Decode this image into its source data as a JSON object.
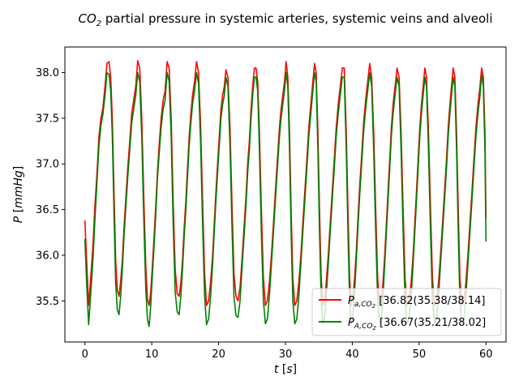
{
  "chart_data": {
    "type": "line",
    "title_parts": [
      "CO",
      "2",
      " partial pressure in systemic arteries, systemic veins and alveoli"
    ],
    "xlabel_parts": [
      "t",
      " [",
      "s",
      "]"
    ],
    "ylabel_parts": [
      "P",
      " [",
      "mmHg",
      "]"
    ],
    "xlim": [
      -3,
      63
    ],
    "ylim": [
      35.05,
      38.28
    ],
    "xticks": [
      0,
      10,
      20,
      30,
      40,
      50,
      60
    ],
    "xtick_labels": [
      "0",
      "10",
      "20",
      "30",
      "40",
      "50",
      "60"
    ],
    "yticks": [
      35.5,
      36.0,
      36.5,
      37.0,
      37.5,
      38.0
    ],
    "ytick_labels": [
      "35.5",
      "36.0",
      "36.5",
      "37.0",
      "37.5",
      "38.0"
    ],
    "grid": false,
    "legend_position": "lower-right",
    "series": [
      {
        "name_parts": [
          "P",
          "a,CO",
          "2",
          " [36.82(35.38/38.14]"
        ],
        "color": "#ff0000",
        "x": [
          0,
          0.25,
          0.55,
          0.9,
          1.2,
          1.5,
          1.8,
          2.1,
          2.4,
          2.7,
          3.0,
          3.3,
          3.6,
          3.85,
          4.1,
          4.35,
          4.6,
          4.85,
          5.1,
          5.35,
          5.6,
          5.85,
          6.1,
          6.4,
          6.7,
          7.0,
          7.3,
          7.6,
          7.9,
          8.2,
          8.5,
          8.8,
          9.1,
          9.35,
          9.6,
          9.85,
          10.1,
          10.35,
          10.6,
          10.85,
          11.1,
          11.4,
          11.7,
          12.0,
          12.3,
          12.6,
          12.9,
          13.2,
          13.5,
          13.8,
          14.1,
          14.35,
          14.6,
          14.85,
          15.1,
          15.35,
          15.6,
          15.85,
          16.1,
          16.4,
          16.7,
          17.0,
          17.3,
          17.6,
          17.9,
          18.2,
          18.5,
          18.8,
          19.1,
          19.35,
          19.6,
          19.85,
          20.1,
          20.35,
          20.6,
          20.85,
          21.1,
          21.4,
          21.7,
          22.0,
          22.3,
          22.6,
          22.9,
          23.2,
          23.5,
          23.8,
          24.1,
          24.35,
          24.6,
          24.85,
          25.1,
          25.35,
          25.6,
          25.85,
          26.1,
          26.4,
          26.7,
          27.0,
          27.3,
          27.6,
          27.9,
          28.2,
          28.5,
          28.8,
          29.1,
          29.35,
          29.6,
          29.85,
          30.1,
          30.35,
          30.6,
          30.85,
          31.1,
          31.4,
          31.7,
          32.0,
          32.3,
          32.6,
          32.9,
          33.2,
          33.5,
          33.8,
          34.1,
          34.35,
          34.6,
          34.85,
          35.1,
          35.35,
          35.6,
          35.85,
          36.1,
          36.4,
          36.7,
          37.0,
          37.3,
          37.6,
          37.9,
          38.2,
          38.5,
          38.8,
          39.1,
          39.35,
          39.6,
          39.85,
          40.1,
          40.35,
          40.6,
          40.85,
          41.1,
          41.4,
          41.7,
          42.0,
          42.3,
          42.6,
          42.9,
          43.2,
          43.5,
          43.8,
          44.1,
          44.35,
          44.6,
          44.85,
          45.1,
          45.35,
          45.6,
          45.85,
          46.1,
          46.4,
          46.7,
          47.0,
          47.3,
          47.6,
          47.9,
          48.2,
          48.5,
          48.8,
          49.1,
          49.35,
          49.6,
          49.85,
          50.1,
          50.35,
          50.6,
          50.85,
          51.1,
          51.4,
          51.7,
          52.0,
          52.3,
          52.6,
          52.9,
          53.2,
          53.5,
          53.8,
          54.1,
          54.35,
          54.6,
          54.85,
          55.1,
          55.35,
          55.6,
          55.85,
          56.1,
          56.4,
          56.7,
          57.0,
          57.3,
          57.6,
          57.9,
          58.2,
          58.5,
          58.8,
          59.1,
          59.35,
          59.6,
          59.85,
          60.0
        ],
        "y": [
          36.38,
          35.95,
          35.45,
          35.78,
          36.1,
          36.55,
          36.9,
          37.3,
          37.5,
          37.62,
          37.85,
          38.1,
          38.12,
          37.95,
          37.5,
          36.7,
          35.95,
          35.62,
          35.55,
          35.72,
          35.95,
          36.3,
          36.6,
          36.95,
          37.25,
          37.55,
          37.7,
          37.85,
          38.13,
          38.05,
          37.5,
          36.65,
          35.9,
          35.52,
          35.45,
          35.6,
          35.9,
          36.2,
          36.55,
          36.92,
          37.2,
          37.5,
          37.7,
          37.8,
          38.12,
          38.05,
          37.5,
          36.6,
          35.85,
          35.58,
          35.55,
          35.7,
          35.95,
          36.3,
          36.6,
          36.95,
          37.3,
          37.55,
          37.75,
          37.9,
          38.12,
          38.0,
          37.45,
          36.6,
          35.8,
          35.45,
          35.5,
          35.7,
          36.0,
          36.35,
          36.7,
          37.0,
          37.3,
          37.6,
          37.75,
          37.85,
          38.03,
          37.95,
          37.4,
          36.55,
          35.8,
          35.55,
          35.5,
          35.65,
          35.95,
          36.3,
          36.65,
          37.0,
          37.25,
          37.6,
          37.85,
          38.05,
          38.05,
          37.9,
          37.35,
          36.5,
          35.75,
          35.45,
          35.5,
          35.7,
          36.0,
          36.35,
          36.7,
          37.05,
          37.4,
          37.6,
          37.75,
          37.9,
          38.12,
          37.95,
          37.4,
          36.5,
          35.75,
          35.45,
          35.5,
          35.7,
          36.0,
          36.35,
          36.7,
          37.05,
          37.4,
          37.65,
          37.9,
          38.1,
          38.0,
          37.35,
          36.5,
          35.75,
          35.45,
          35.5,
          35.7,
          36.0,
          36.35,
          36.7,
          37.05,
          37.4,
          37.65,
          37.85,
          38.05,
          38.05,
          37.35,
          36.5,
          35.75,
          35.45,
          35.55,
          35.75,
          36.05,
          36.4,
          36.75,
          37.1,
          37.45,
          37.7,
          37.9,
          38.1,
          37.95,
          37.35,
          36.5,
          35.75,
          35.45,
          35.5,
          35.7,
          36.0,
          36.35,
          36.7,
          37.05,
          37.4,
          37.65,
          37.85,
          38.05,
          37.95,
          37.35,
          36.5,
          35.75,
          35.45,
          35.5,
          35.7,
          36.0,
          36.35,
          36.7,
          37.05,
          37.4,
          37.65,
          37.85,
          38.05,
          37.95,
          37.35,
          36.5,
          35.75,
          35.45,
          35.5,
          35.7,
          36.0,
          36.35,
          36.7,
          37.05,
          37.4,
          37.65,
          37.85,
          38.05,
          37.95,
          37.35,
          36.5,
          35.75,
          35.45,
          35.5,
          35.7,
          36.0,
          36.35,
          36.7,
          37.05,
          37.4,
          37.65,
          37.85,
          38.05,
          37.95,
          37.35,
          36.4
        ]
      },
      {
        "name_parts": [
          "P",
          "A,CO",
          "2",
          " [36.67(35.21/38.02]"
        ],
        "color": "#008000",
        "x": [
          0,
          0.25,
          0.55,
          0.9,
          1.2,
          1.5,
          1.8,
          2.1,
          2.4,
          2.7,
          3.0,
          3.3,
          3.6,
          3.85,
          4.1,
          4.35,
          4.6,
          4.85,
          5.1,
          5.35,
          5.6,
          5.85,
          6.1,
          6.4,
          6.7,
          7.0,
          7.3,
          7.6,
          7.9,
          8.2,
          8.5,
          8.8,
          9.1,
          9.35,
          9.6,
          9.85,
          10.1,
          10.35,
          10.6,
          10.85,
          11.1,
          11.4,
          11.7,
          12.0,
          12.3,
          12.6,
          12.9,
          13.2,
          13.5,
          13.8,
          14.1,
          14.35,
          14.6,
          14.85,
          15.1,
          15.35,
          15.6,
          15.85,
          16.1,
          16.4,
          16.7,
          17.0,
          17.3,
          17.6,
          17.9,
          18.2,
          18.5,
          18.8,
          19.1,
          19.35,
          19.6,
          19.85,
          20.1,
          20.35,
          20.6,
          20.85,
          21.1,
          21.4,
          21.7,
          22.0,
          22.3,
          22.6,
          22.9,
          23.2,
          23.5,
          23.8,
          24.1,
          24.35,
          24.6,
          24.85,
          25.1,
          25.35,
          25.6,
          25.85,
          26.1,
          26.4,
          26.7,
          27.0,
          27.3,
          27.6,
          27.9,
          28.2,
          28.5,
          28.8,
          29.1,
          29.35,
          29.6,
          29.85,
          30.1,
          30.35,
          30.6,
          30.85,
          31.1,
          31.4,
          31.7,
          32.0,
          32.3,
          32.6,
          32.9,
          33.2,
          33.5,
          33.8,
          34.1,
          34.35,
          34.6,
          34.85,
          35.1,
          35.35,
          35.6,
          35.85,
          36.1,
          36.4,
          36.7,
          37.0,
          37.3,
          37.6,
          37.9,
          38.2,
          38.5,
          38.8,
          39.1,
          39.35,
          39.6,
          39.85,
          40.1,
          40.35,
          40.6,
          40.85,
          41.1,
          41.4,
          41.7,
          42.0,
          42.3,
          42.6,
          42.9,
          43.2,
          43.5,
          43.8,
          44.1,
          44.35,
          44.6,
          44.85,
          45.1,
          45.35,
          45.6,
          45.85,
          46.1,
          46.4,
          46.7,
          47.0,
          47.3,
          47.6,
          47.9,
          48.2,
          48.5,
          48.8,
          49.1,
          49.35,
          49.6,
          49.85,
          50.1,
          50.35,
          50.6,
          50.85,
          51.1,
          51.4,
          51.7,
          52.0,
          52.3,
          52.6,
          52.9,
          53.2,
          53.5,
          53.8,
          54.1,
          54.35,
          54.6,
          54.85,
          55.1,
          55.35,
          55.6,
          55.85,
          56.1,
          56.4,
          56.7,
          57.0,
          57.3,
          57.6,
          57.9,
          58.2,
          58.5,
          58.8,
          59.1,
          59.35,
          59.6,
          59.85,
          60.0
        ],
        "y": [
          36.18,
          35.7,
          35.24,
          35.6,
          35.95,
          36.4,
          36.8,
          37.2,
          37.42,
          37.55,
          37.75,
          38.0,
          37.98,
          37.8,
          37.3,
          36.45,
          35.7,
          35.4,
          35.35,
          35.55,
          35.85,
          36.2,
          36.5,
          36.85,
          37.15,
          37.45,
          37.6,
          37.75,
          38.0,
          37.9,
          37.3,
          36.4,
          35.65,
          35.3,
          35.22,
          35.45,
          35.8,
          36.1,
          36.45,
          36.85,
          37.1,
          37.4,
          37.6,
          37.7,
          38.0,
          37.9,
          37.3,
          36.35,
          35.6,
          35.38,
          35.35,
          35.55,
          35.85,
          36.2,
          36.5,
          36.85,
          37.2,
          37.45,
          37.65,
          37.8,
          38.0,
          37.88,
          37.25,
          36.35,
          35.55,
          35.24,
          35.3,
          35.55,
          35.9,
          36.25,
          36.6,
          36.9,
          37.2,
          37.5,
          37.65,
          37.75,
          37.95,
          37.85,
          37.2,
          36.3,
          35.55,
          35.34,
          35.32,
          35.5,
          35.85,
          36.2,
          36.55,
          36.9,
          37.15,
          37.5,
          37.75,
          37.95,
          37.95,
          37.8,
          37.15,
          36.25,
          35.5,
          35.25,
          35.3,
          35.55,
          35.9,
          36.25,
          36.6,
          36.95,
          37.3,
          37.5,
          37.65,
          37.8,
          38.0,
          37.85,
          37.2,
          36.25,
          35.5,
          35.25,
          35.3,
          35.55,
          35.9,
          36.25,
          36.6,
          36.95,
          37.3,
          37.55,
          37.8,
          38.0,
          37.9,
          37.15,
          36.25,
          35.5,
          35.25,
          35.3,
          35.55,
          35.9,
          36.25,
          36.6,
          36.95,
          37.3,
          37.55,
          37.75,
          37.95,
          37.95,
          37.15,
          36.25,
          35.5,
          35.25,
          35.35,
          35.6,
          35.95,
          36.3,
          36.65,
          37.0,
          37.35,
          37.6,
          37.8,
          38.0,
          37.85,
          37.15,
          36.25,
          35.5,
          35.25,
          35.3,
          35.55,
          35.9,
          36.25,
          36.6,
          36.95,
          37.3,
          37.55,
          37.75,
          37.95,
          37.85,
          37.15,
          36.25,
          35.5,
          35.25,
          35.3,
          35.55,
          35.9,
          36.25,
          36.6,
          36.95,
          37.3,
          37.55,
          37.75,
          37.95,
          37.85,
          37.15,
          36.25,
          35.5,
          35.25,
          35.3,
          35.55,
          35.9,
          36.25,
          36.6,
          36.95,
          37.3,
          37.55,
          37.75,
          37.95,
          37.85,
          37.15,
          36.25,
          35.5,
          35.25,
          35.3,
          35.55,
          35.9,
          36.25,
          36.6,
          36.95,
          37.3,
          37.55,
          37.75,
          37.98,
          37.85,
          37.15,
          36.15
        ]
      }
    ]
  }
}
